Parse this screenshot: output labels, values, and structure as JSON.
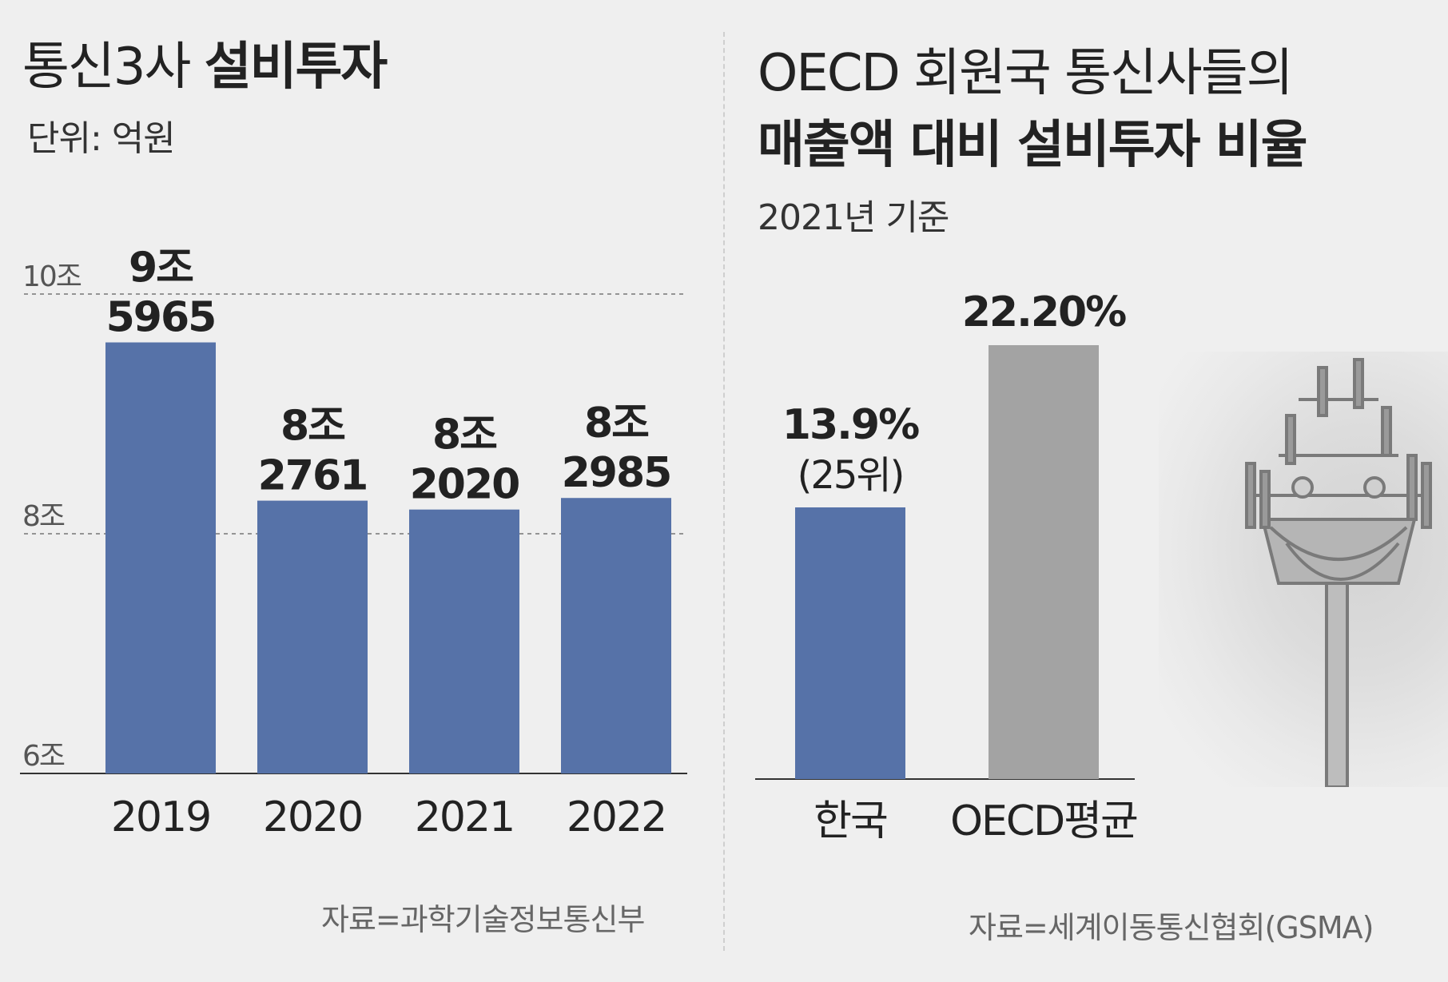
{
  "left": {
    "title_light": "통신3사 ",
    "title_bold": "설비투자",
    "unit": "단위: 억원",
    "source": "자료=과학기술정보통신부",
    "chart_data": {
      "type": "bar",
      "title": "통신3사 설비투자",
      "unit": "억원",
      "categories": [
        "2019",
        "2020",
        "2021",
        "2022"
      ],
      "values": [
        95965,
        82761,
        82020,
        82985
      ],
      "value_labels": [
        [
          "9조",
          "5965"
        ],
        [
          "8조",
          "2761"
        ],
        [
          "8조",
          "2020"
        ],
        [
          "8조",
          "2985"
        ]
      ],
      "ylim": [
        60000,
        100000
      ],
      "y_ticks": [
        {
          "value": 100000,
          "label": "10조"
        },
        {
          "value": 80000,
          "label": "8조"
        },
        {
          "value": 60000,
          "label": "6조"
        }
      ],
      "bar_color": "#5672a8"
    }
  },
  "right": {
    "title_line1": "OECD 회원국 통신사들의",
    "title_line2": "매출액 대비 설비투자 비율",
    "basis": "2021년 기준",
    "source": "자료=세계이동통신협회(GSMA)",
    "chart_data": {
      "type": "bar",
      "title": "OECD 회원국 통신사들의 매출액 대비 설비투자 비율",
      "unit": "%",
      "categories": [
        "한국",
        "OECD평균"
      ],
      "values": [
        13.9,
        22.2
      ],
      "value_labels": [
        "13.9%",
        "22.20%"
      ],
      "sub_labels": [
        "(25위)",
        ""
      ],
      "colors": [
        "#5672a8",
        "#a3a3a3"
      ]
    }
  }
}
